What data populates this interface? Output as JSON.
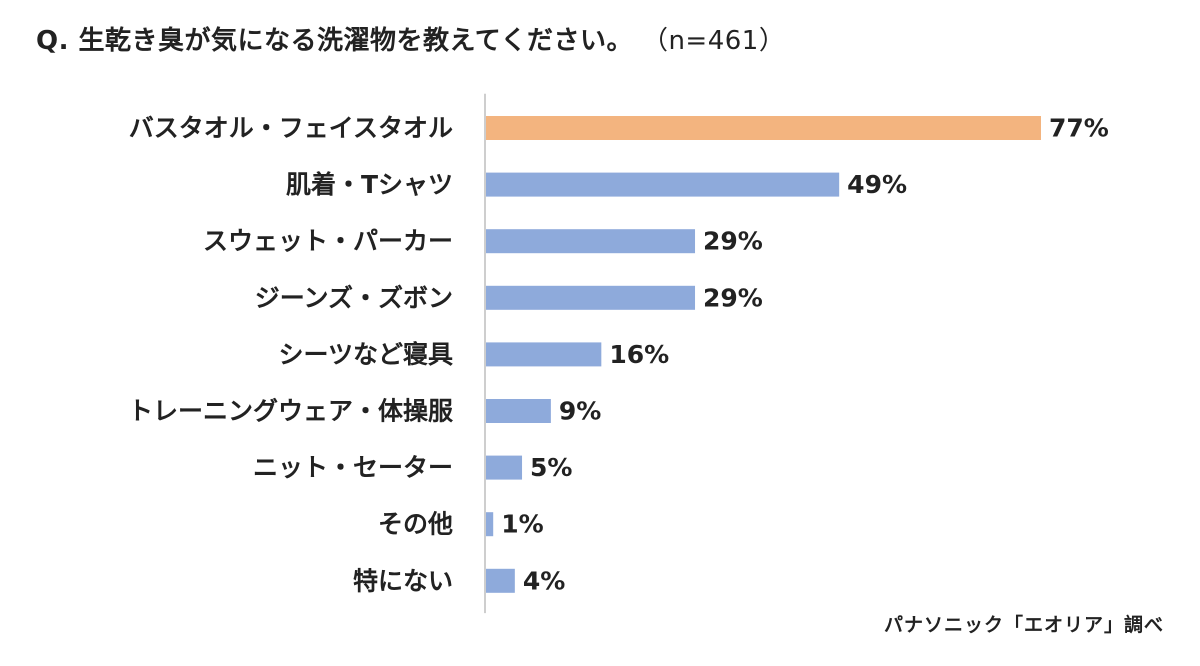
{
  "title": "Q. 生乾き臭が気になる洗濯物を教えてください。",
  "sample": "（n=461）",
  "source": "パナソニック「エオリア」調べ",
  "colors": {
    "highlight": "#f3b47f",
    "bar": "#8eaadb",
    "axis": "#bdbdbd",
    "text": "#222222"
  },
  "chart_data": {
    "type": "bar",
    "orientation": "horizontal",
    "categories": [
      "バスタオル・フェイスタオル",
      "肌着・Tシャツ",
      "スウェット・パーカー",
      "ジーンズ・ズボン",
      "シーツなど寝具",
      "トレーニングウェア・体操服",
      "ニット・セーター",
      "その他",
      "特にない"
    ],
    "values": [
      77,
      49,
      29,
      29,
      16,
      9,
      5,
      1,
      4
    ],
    "value_labels": [
      "77%",
      "49%",
      "29%",
      "29%",
      "16%",
      "9%",
      "5%",
      "1%",
      "4%"
    ],
    "unit": "%",
    "xlim": [
      0,
      100
    ],
    "highlight_index": 0,
    "grid": false
  }
}
